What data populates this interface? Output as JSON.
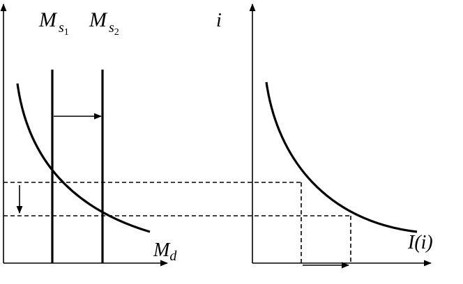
{
  "labels": {
    "money_supply_1": {
      "main": "M",
      "sub": "s",
      "subsub": "1"
    },
    "money_supply_2": {
      "main": "M",
      "sub": "s",
      "subsub": "2"
    },
    "interest_rate": "i",
    "money_demand": {
      "main": "M",
      "sub": "d"
    },
    "investment": "I(i)"
  }
}
